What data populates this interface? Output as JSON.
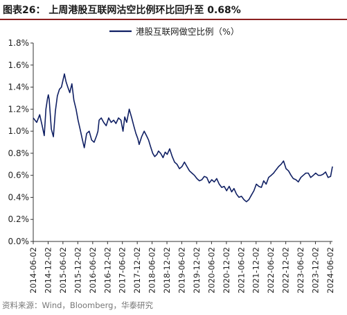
{
  "title": "图表26：  上周港股互联网沽空比例环比回升至 0.68%",
  "source": "资料来源：Wind，Bloomberg，华泰研究",
  "colors": {
    "series": "#0f1f63",
    "axis": "#333333",
    "title_rule": "#8a1f1f"
  },
  "chart_data": {
    "type": "line",
    "legend": {
      "position": "top-center",
      "entries": [
        "港股互联网做空比例（%）"
      ]
    },
    "grid": false,
    "x_tick_labels": [
      "2014-06-02",
      "2014-12-02",
      "2015-06-02",
      "2015-12-02",
      "2016-06-02",
      "2016-12-02",
      "2017-06-02",
      "2017-12-02",
      "2018-06-02",
      "2018-12-02",
      "2019-06-02",
      "2019-12-02",
      "2020-06-02",
      "2020-12-02",
      "2021-06-02",
      "2021-12-02",
      "2022-06-02",
      "2022-12-02",
      "2023-06-02",
      "2023-12-02",
      "2024-06-02"
    ],
    "y_tick_labels": [
      "0.0%",
      "0.2%",
      "0.4%",
      "0.6%",
      "0.8%",
      "1.0%",
      "1.2%",
      "1.4%",
      "1.6%",
      "1.8%"
    ],
    "ylim": [
      0,
      1.8
    ],
    "xlim": [
      "2014-06-02",
      "2024-06-28"
    ],
    "series": [
      {
        "name": "港股互联网做空比例（%）",
        "x": [
          "2014-06-02",
          "2014-07-15",
          "2014-08-20",
          "2014-09-20",
          "2014-10-15",
          "2014-11-05",
          "2014-11-25",
          "2014-12-05",
          "2014-12-15",
          "2015-01-10",
          "2015-02-05",
          "2015-03-01",
          "2015-03-25",
          "2015-04-20",
          "2015-05-15",
          "2015-06-05",
          "2015-06-20",
          "2015-07-10",
          "2015-08-01",
          "2015-08-25",
          "2015-09-20",
          "2015-10-15",
          "2015-11-10",
          "2015-12-05",
          "2016-01-05",
          "2016-01-25",
          "2016-02-20",
          "2016-03-20",
          "2016-04-20",
          "2016-05-20",
          "2016-06-20",
          "2016-07-20",
          "2016-08-05",
          "2016-08-20",
          "2016-09-15",
          "2016-10-15",
          "2016-11-15",
          "2016-12-15",
          "2017-01-15",
          "2017-02-15",
          "2017-03-15",
          "2017-04-15",
          "2017-05-15",
          "2017-06-10",
          "2017-07-01",
          "2017-07-25",
          "2017-08-25",
          "2017-09-25",
          "2017-10-20",
          "2017-11-15",
          "2017-12-10",
          "2017-12-25",
          "2018-01-25",
          "2018-02-25",
          "2018-03-25",
          "2018-04-20",
          "2018-05-15",
          "2018-06-10",
          "2018-07-05",
          "2018-08-01",
          "2018-08-20",
          "2018-09-15",
          "2018-10-15",
          "2018-11-10",
          "2018-12-05",
          "2019-01-05",
          "2019-02-05",
          "2019-03-05",
          "2019-04-05",
          "2019-05-05",
          "2019-06-05",
          "2019-07-05",
          "2019-08-05",
          "2019-09-05",
          "2019-10-05",
          "2019-11-05",
          "2019-12-05",
          "2020-01-05",
          "2020-02-05",
          "2020-03-05",
          "2020-04-05",
          "2020-05-05",
          "2020-06-05",
          "2020-07-05",
          "2020-08-05",
          "2020-09-05",
          "2020-10-05",
          "2020-11-05",
          "2020-12-05",
          "2021-01-05",
          "2021-02-05",
          "2021-03-05",
          "2021-04-05",
          "2021-05-05",
          "2021-06-05",
          "2021-07-05",
          "2021-08-05",
          "2021-09-05",
          "2021-10-05",
          "2021-11-05",
          "2021-12-05",
          "2022-01-05",
          "2022-02-05",
          "2022-03-05",
          "2022-04-05",
          "2022-05-05",
          "2022-06-05",
          "2022-07-05",
          "2022-08-05",
          "2022-09-05",
          "2022-10-05",
          "2022-11-05",
          "2022-12-05",
          "2023-01-05",
          "2023-02-05",
          "2023-03-05",
          "2023-04-05",
          "2023-05-05",
          "2023-06-05",
          "2023-07-05",
          "2023-08-05",
          "2023-09-05",
          "2023-10-05",
          "2023-11-05",
          "2023-12-05",
          "2024-01-05",
          "2024-02-05",
          "2024-03-05",
          "2024-04-05",
          "2024-05-05",
          "2024-06-05",
          "2024-06-28"
        ],
        "values": [
          1.12,
          1.08,
          1.15,
          1.05,
          0.96,
          1.2,
          1.3,
          1.33,
          1.29,
          1.02,
          0.95,
          1.18,
          1.32,
          1.38,
          1.4,
          1.47,
          1.52,
          1.45,
          1.4,
          1.35,
          1.43,
          1.28,
          1.2,
          1.1,
          1.0,
          0.93,
          0.85,
          0.98,
          1.0,
          0.92,
          0.9,
          0.96,
          1.0,
          1.1,
          1.12,
          1.08,
          1.05,
          1.12,
          1.08,
          1.1,
          1.07,
          1.12,
          1.1,
          1.0,
          1.13,
          1.08,
          1.2,
          1.12,
          1.05,
          0.98,
          0.93,
          0.88,
          0.95,
          1.0,
          0.96,
          0.92,
          0.86,
          0.8,
          0.77,
          0.79,
          0.82,
          0.8,
          0.76,
          0.81,
          0.79,
          0.84,
          0.77,
          0.72,
          0.7,
          0.66,
          0.68,
          0.72,
          0.68,
          0.64,
          0.62,
          0.6,
          0.57,
          0.55,
          0.56,
          0.59,
          0.58,
          0.53,
          0.56,
          0.54,
          0.57,
          0.52,
          0.49,
          0.5,
          0.46,
          0.5,
          0.45,
          0.48,
          0.43,
          0.4,
          0.41,
          0.38,
          0.36,
          0.38,
          0.42,
          0.46,
          0.52,
          0.5,
          0.49,
          0.55,
          0.52,
          0.58,
          0.6,
          0.62,
          0.65,
          0.68,
          0.7,
          0.73,
          0.66,
          0.64,
          0.6,
          0.57,
          0.56,
          0.54,
          0.58,
          0.6,
          0.62,
          0.62,
          0.58,
          0.6,
          0.62,
          0.6,
          0.6,
          0.61,
          0.63,
          0.58,
          0.59,
          0.68
        ]
      }
    ]
  }
}
